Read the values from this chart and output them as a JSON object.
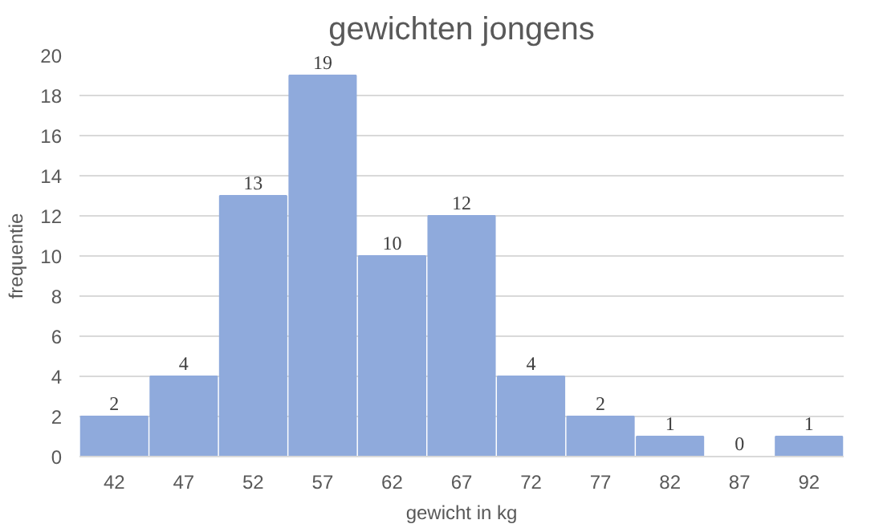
{
  "chart_data": {
    "type": "bar",
    "title": "gewichten jongens",
    "xlabel": "gewicht in kg",
    "ylabel": "frequentie",
    "categories": [
      "42",
      "47",
      "52",
      "57",
      "62",
      "67",
      "72",
      "77",
      "82",
      "87",
      "92"
    ],
    "values": [
      2,
      4,
      13,
      19,
      10,
      12,
      4,
      2,
      1,
      0,
      1
    ],
    "color": "#8faadc",
    "ylim": [
      0,
      20
    ],
    "yticks": [
      0,
      2,
      4,
      6,
      8,
      10,
      12,
      14,
      16,
      18,
      20
    ],
    "grid": "y",
    "data_labels": true
  }
}
